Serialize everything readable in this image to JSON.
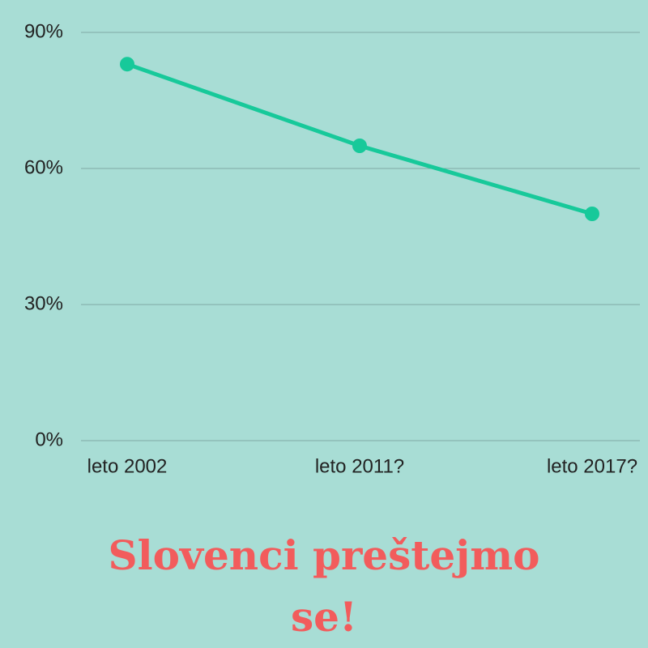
{
  "chart_data": {
    "type": "line",
    "title": "Slovenci preštejmo se!",
    "categories": [
      "leto 2002",
      "leto 2011?",
      "leto 2017?"
    ],
    "values": [
      83,
      65,
      50
    ],
    "color": "#17c99a",
    "ylim": [
      0,
      90
    ],
    "yticks": [
      {
        "value": 0,
        "label": "0%"
      },
      {
        "value": 30,
        "label": "30%"
      },
      {
        "value": 60,
        "label": "60%"
      },
      {
        "value": 90,
        "label": "90%"
      }
    ],
    "grid": true
  }
}
